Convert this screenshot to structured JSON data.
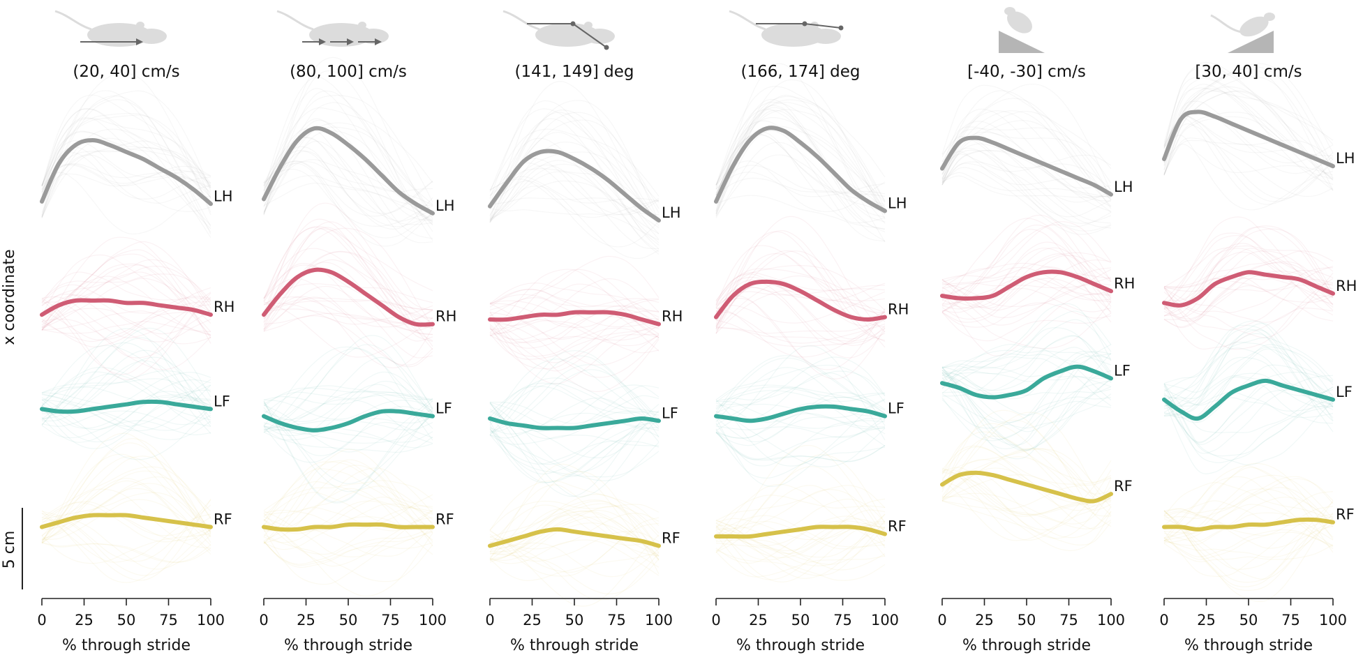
{
  "figure": {
    "ylabel": "x coordinate",
    "scale_bar_label": "5 cm",
    "xlabel": "% through stride",
    "x_ticks": [
      "0",
      "25",
      "50",
      "75",
      "100"
    ],
    "series_colors": {
      "LH": "#9a9a9a",
      "RH": "#cf5c74",
      "LF": "#3aa99a",
      "RF": "#d6c14a"
    },
    "background_trace_opacity": 0.08
  },
  "chart_data": [
    {
      "type": "line",
      "title": "(20, 40] cm/s",
      "icon": "mouse-walking-slow-icon",
      "x": [
        0,
        10,
        20,
        30,
        40,
        50,
        60,
        70,
        80,
        90,
        100
      ],
      "xlim": [
        0,
        100
      ],
      "series": [
        {
          "name": "LH",
          "values": [
            7.8,
            9.4,
            10.2,
            10.4,
            10.2,
            9.9,
            9.6,
            9.2,
            8.8,
            8.3,
            7.7
          ]
        },
        {
          "name": "RH",
          "values": [
            3.0,
            3.4,
            3.6,
            3.6,
            3.6,
            3.5,
            3.5,
            3.4,
            3.3,
            3.2,
            3.0
          ]
        },
        {
          "name": "LF",
          "values": [
            -1.0,
            -1.1,
            -1.1,
            -1.0,
            -0.9,
            -0.8,
            -0.7,
            -0.7,
            -0.8,
            -0.9,
            -1.0
          ]
        },
        {
          "name": "RF",
          "values": [
            -6.0,
            -5.8,
            -5.6,
            -5.5,
            -5.5,
            -5.5,
            -5.6,
            -5.7,
            -5.8,
            -5.9,
            -6.0
          ]
        }
      ]
    },
    {
      "type": "line",
      "title": "(80, 100] cm/s",
      "icon": "mouse-running-fast-icon",
      "x": [
        0,
        10,
        20,
        30,
        40,
        50,
        60,
        70,
        80,
        90,
        100
      ],
      "xlim": [
        0,
        100
      ],
      "series": [
        {
          "name": "LH",
          "values": [
            7.9,
            9.3,
            10.4,
            10.9,
            10.7,
            10.2,
            9.6,
            8.9,
            8.2,
            7.7,
            7.3
          ]
        },
        {
          "name": "RH",
          "values": [
            3.0,
            3.9,
            4.6,
            4.9,
            4.8,
            4.4,
            3.9,
            3.4,
            2.9,
            2.6,
            2.6
          ]
        },
        {
          "name": "LF",
          "values": [
            -1.3,
            -1.6,
            -1.8,
            -1.9,
            -1.8,
            -1.6,
            -1.3,
            -1.1,
            -1.1,
            -1.2,
            -1.3
          ]
        },
        {
          "name": "RF",
          "values": [
            -6.0,
            -6.1,
            -6.1,
            -6.0,
            -6.0,
            -5.9,
            -5.9,
            -5.9,
            -6.0,
            -6.0,
            -6.0
          ]
        }
      ]
    },
    {
      "type": "line",
      "title": "(141, 149] deg",
      "icon": "mouse-body-angle-bent-icon",
      "x": [
        0,
        10,
        20,
        30,
        40,
        50,
        60,
        70,
        80,
        90,
        100
      ],
      "xlim": [
        0,
        100
      ],
      "series": [
        {
          "name": "LH",
          "values": [
            7.6,
            8.6,
            9.5,
            9.9,
            9.9,
            9.6,
            9.2,
            8.7,
            8.1,
            7.5,
            7.0
          ]
        },
        {
          "name": "RH",
          "values": [
            2.8,
            2.8,
            2.9,
            3.0,
            3.0,
            3.1,
            3.1,
            3.1,
            3.0,
            2.8,
            2.6
          ]
        },
        {
          "name": "LF",
          "values": [
            -1.4,
            -1.6,
            -1.7,
            -1.8,
            -1.8,
            -1.8,
            -1.7,
            -1.6,
            -1.5,
            -1.4,
            -1.5
          ]
        },
        {
          "name": "RF",
          "values": [
            -6.8,
            -6.6,
            -6.4,
            -6.2,
            -6.1,
            -6.2,
            -6.3,
            -6.4,
            -6.5,
            -6.6,
            -6.8
          ]
        }
      ]
    },
    {
      "type": "line",
      "title": "(166, 174] deg",
      "icon": "mouse-body-angle-straight-icon",
      "x": [
        0,
        10,
        20,
        30,
        40,
        50,
        60,
        70,
        80,
        90,
        100
      ],
      "xlim": [
        0,
        100
      ],
      "series": [
        {
          "name": "LH",
          "values": [
            7.8,
            9.3,
            10.4,
            10.9,
            10.8,
            10.3,
            9.7,
            9.0,
            8.3,
            7.8,
            7.4
          ]
        },
        {
          "name": "RH",
          "values": [
            2.9,
            3.8,
            4.3,
            4.4,
            4.3,
            4.0,
            3.6,
            3.2,
            2.9,
            2.8,
            2.9
          ]
        },
        {
          "name": "LF",
          "values": [
            -1.3,
            -1.4,
            -1.5,
            -1.4,
            -1.2,
            -1.0,
            -0.9,
            -0.9,
            -1.0,
            -1.1,
            -1.3
          ]
        },
        {
          "name": "RF",
          "values": [
            -6.4,
            -6.4,
            -6.4,
            -6.3,
            -6.2,
            -6.1,
            -6.0,
            -6.0,
            -6.0,
            -6.1,
            -6.3
          ]
        }
      ]
    },
    {
      "type": "line",
      "title": "[-40, -30] cm/s",
      "icon": "mouse-downhill-slope-icon",
      "x": [
        0,
        10,
        20,
        30,
        40,
        50,
        60,
        70,
        80,
        90,
        100
      ],
      "xlim": [
        0,
        100
      ],
      "series": [
        {
          "name": "LH",
          "values": [
            9.2,
            10.3,
            10.5,
            10.3,
            10.0,
            9.7,
            9.4,
            9.1,
            8.8,
            8.5,
            8.1
          ]
        },
        {
          "name": "RH",
          "values": [
            3.8,
            3.7,
            3.7,
            3.8,
            4.2,
            4.6,
            4.8,
            4.8,
            4.6,
            4.3,
            4.0
          ]
        },
        {
          "name": "LF",
          "values": [
            0.1,
            -0.1,
            -0.4,
            -0.5,
            -0.4,
            -0.2,
            0.3,
            0.6,
            0.8,
            0.6,
            0.3
          ]
        },
        {
          "name": "RF",
          "values": [
            -4.2,
            -3.8,
            -3.7,
            -3.8,
            -4.0,
            -4.2,
            -4.4,
            -4.6,
            -4.8,
            -4.9,
            -4.6
          ]
        }
      ]
    },
    {
      "type": "line",
      "title": "[30, 40] cm/s",
      "icon": "mouse-uphill-slope-icon",
      "x": [
        0,
        10,
        20,
        30,
        40,
        50,
        60,
        70,
        80,
        90,
        100
      ],
      "xlim": [
        0,
        100
      ],
      "series": [
        {
          "name": "LH",
          "values": [
            9.6,
            11.3,
            11.6,
            11.4,
            11.1,
            10.8,
            10.5,
            10.2,
            9.9,
            9.6,
            9.3
          ]
        },
        {
          "name": "RH",
          "values": [
            3.5,
            3.4,
            3.7,
            4.3,
            4.6,
            4.8,
            4.7,
            4.6,
            4.5,
            4.2,
            3.9
          ]
        },
        {
          "name": "LF",
          "values": [
            -0.6,
            -1.1,
            -1.4,
            -0.9,
            -0.3,
            0.0,
            0.2,
            0.0,
            -0.2,
            -0.4,
            -0.6
          ]
        },
        {
          "name": "RF",
          "values": [
            -6.0,
            -6.0,
            -6.1,
            -6.0,
            -6.0,
            -5.9,
            -5.9,
            -5.8,
            -5.7,
            -5.7,
            -5.8
          ]
        }
      ]
    }
  ]
}
